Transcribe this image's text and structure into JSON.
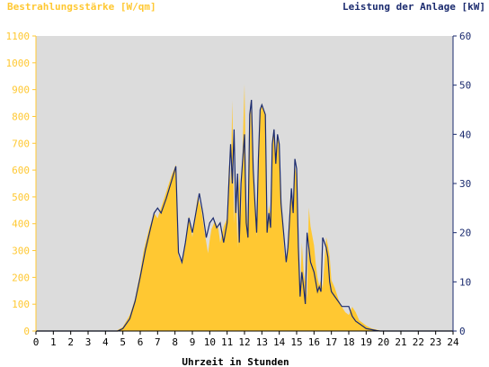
{
  "chart_data": {
    "type": "area",
    "left_axis_title": "Bestrahlungsstärke [W/qm]",
    "right_axis_title": "Leistung der Anlage [kW]",
    "xlabel": "Uhrzeit in Stunden",
    "x_ticks": [
      "0",
      "1",
      "2",
      "3",
      "4",
      "5",
      "6",
      "7",
      "8",
      "9",
      "10",
      "11",
      "12",
      "13",
      "14",
      "15",
      "16",
      "17",
      "18",
      "19",
      "20",
      "21",
      "22",
      "23",
      "24"
    ],
    "left_ticks": [
      "0",
      "100",
      "200",
      "300",
      "400",
      "500",
      "600",
      "700",
      "800",
      "900",
      "1000",
      "1100"
    ],
    "right_ticks": [
      "0",
      "10",
      "20",
      "30",
      "40",
      "50",
      "60"
    ],
    "xlim": [
      0,
      24
    ],
    "left_ylim": [
      0,
      1100
    ],
    "right_ylim": [
      0,
      60
    ],
    "grid": false,
    "colors": {
      "plot_background": "#dcdcdc",
      "irradiance_fill": "#ffc832",
      "power_line": "#1a2a6e",
      "left_axis_text": "#ffc832",
      "right_axis_text": "#1a2a6e"
    },
    "series": [
      {
        "name": "Bestrahlungsstärke [W/qm]",
        "style": "area",
        "axis": "left",
        "x": [
          0,
          4.6,
          5.0,
          5.4,
          5.7,
          6.0,
          6.2,
          6.5,
          6.8,
          7.0,
          7.2,
          7.5,
          7.8,
          8.05,
          8.2,
          8.4,
          8.6,
          8.8,
          9.0,
          9.1,
          9.3,
          9.5,
          9.7,
          9.9,
          10.0,
          10.1,
          10.3,
          10.5,
          10.6,
          10.8,
          11.0,
          11.1,
          11.2,
          11.3,
          11.4,
          11.5,
          11.6,
          11.7,
          11.8,
          11.9,
          12.0,
          12.1,
          12.2,
          12.35,
          12.4,
          12.5,
          12.6,
          12.7,
          12.8,
          12.9,
          13.0,
          13.1,
          13.2,
          13.3,
          13.4,
          13.5,
          13.6,
          13.7,
          13.8,
          13.9,
          14.0,
          14.1,
          14.2,
          14.3,
          14.4,
          14.5,
          14.6,
          14.7,
          14.8,
          14.9,
          15.0,
          15.1,
          15.2,
          15.3,
          15.4,
          15.5,
          15.6,
          15.7,
          15.8,
          16.0,
          16.1,
          16.2,
          16.3,
          16.4,
          16.5,
          16.7,
          16.8,
          16.9,
          17.0,
          17.2,
          17.4,
          17.6,
          17.8,
          18.0,
          18.2,
          18.4,
          18.6,
          18.8,
          19.0,
          19.3,
          19.6,
          19.8,
          20.0,
          20.2,
          24
        ],
        "y": [
          0,
          0,
          15,
          60,
          120,
          220,
          300,
          380,
          440,
          420,
          460,
          520,
          580,
          620,
          280,
          250,
          320,
          430,
          350,
          400,
          500,
          460,
          370,
          290,
          340,
          380,
          410,
          380,
          330,
          390,
          420,
          620,
          540,
          860,
          400,
          560,
          310,
          600,
          430,
          700,
          920,
          490,
          360,
          860,
          770,
          570,
          480,
          350,
          610,
          800,
          850,
          820,
          800,
          360,
          470,
          430,
          720,
          750,
          650,
          720,
          700,
          520,
          380,
          290,
          250,
          320,
          470,
          510,
          450,
          620,
          570,
          300,
          130,
          330,
          220,
          180,
          120,
          460,
          390,
          320,
          250,
          200,
          170,
          190,
          160,
          350,
          320,
          280,
          190,
          160,
          120,
          90,
          70,
          60,
          90,
          70,
          40,
          30,
          20,
          10,
          5,
          2,
          0,
          0,
          0
        ],
        "values": [
          0,
          0,
          15,
          60,
          120,
          220,
          300,
          380,
          440,
          420,
          460,
          520,
          580,
          620,
          280,
          250,
          320,
          430,
          350,
          400,
          500,
          460,
          370,
          290,
          340,
          380,
          410,
          380,
          330,
          390,
          420,
          620,
          540,
          860,
          400,
          560,
          310,
          600,
          430,
          700,
          920,
          490,
          360,
          860,
          770,
          570,
          480,
          350,
          610,
          800,
          850,
          820,
          800,
          360,
          470,
          430,
          720,
          750,
          650,
          720,
          700,
          520,
          380,
          290,
          250,
          320,
          470,
          510,
          450,
          620,
          570,
          300,
          130,
          330,
          220,
          180,
          120,
          460,
          390,
          320,
          250,
          200,
          170,
          190,
          160,
          350,
          320,
          280,
          190,
          160,
          120,
          90,
          70,
          60,
          90,
          70,
          40,
          30,
          20,
          10,
          5,
          2,
          0,
          0,
          0
        ]
      },
      {
        "name": "Leistung der Anlage [kW]",
        "style": "line",
        "axis": "right",
        "x": [
          0,
          4.7,
          5.0,
          5.4,
          5.7,
          6.0,
          6.3,
          6.6,
          6.8,
          7.0,
          7.2,
          7.5,
          7.8,
          8.05,
          8.2,
          8.4,
          8.6,
          8.8,
          9.0,
          9.2,
          9.4,
          9.6,
          9.8,
          10.0,
          10.2,
          10.4,
          10.6,
          10.8,
          11.0,
          11.2,
          11.3,
          11.4,
          11.5,
          11.6,
          11.7,
          11.8,
          12.0,
          12.1,
          12.2,
          12.3,
          12.4,
          12.5,
          12.6,
          12.7,
          12.8,
          12.9,
          13.0,
          13.2,
          13.3,
          13.4,
          13.5,
          13.6,
          13.7,
          13.8,
          13.9,
          14.0,
          14.1,
          14.2,
          14.3,
          14.4,
          14.5,
          14.6,
          14.7,
          14.8,
          14.9,
          15.0,
          15.1,
          15.2,
          15.3,
          15.4,
          15.5,
          15.6,
          15.7,
          15.8,
          16.0,
          16.1,
          16.2,
          16.3,
          16.4,
          16.5,
          16.7,
          16.8,
          16.9,
          17.0,
          17.2,
          17.4,
          17.6,
          17.8,
          18.0,
          18.2,
          18.4,
          18.6,
          18.8,
          19.0,
          19.3,
          19.6,
          19.8,
          20.0,
          20.2,
          24
        ],
        "y": [
          0,
          0,
          0.5,
          2.5,
          6,
          11,
          16.5,
          21,
          24,
          25,
          24,
          27,
          30.5,
          33.5,
          16,
          14,
          18,
          23,
          20,
          24,
          28,
          24,
          19,
          22,
          23,
          21,
          22,
          18,
          22,
          38,
          30,
          41,
          24,
          32,
          18,
          30,
          40,
          22,
          19,
          44,
          47,
          33,
          26,
          20,
          35,
          45,
          46,
          44,
          20,
          24,
          21,
          38,
          41,
          34,
          40,
          38,
          26,
          22,
          18,
          14,
          17,
          23,
          29,
          24,
          35,
          33,
          17,
          7,
          12,
          9,
          5.5,
          20,
          17,
          14,
          12,
          10,
          8,
          9,
          8,
          19,
          17,
          15,
          10,
          8,
          7,
          6,
          5,
          5,
          5,
          3,
          2,
          1.5,
          1,
          0.5,
          0.3,
          0.1,
          0,
          0,
          0,
          0
        ],
        "values": [
          0,
          0,
          0.5,
          2.5,
          6,
          11,
          16.5,
          21,
          24,
          25,
          24,
          27,
          30.5,
          33.5,
          16,
          14,
          18,
          23,
          20,
          24,
          28,
          24,
          19,
          22,
          23,
          21,
          22,
          18,
          22,
          38,
          30,
          41,
          24,
          32,
          18,
          30,
          40,
          22,
          19,
          44,
          47,
          33,
          26,
          20,
          35,
          45,
          46,
          44,
          20,
          24,
          21,
          38,
          41,
          34,
          40,
          38,
          26,
          22,
          18,
          14,
          17,
          23,
          29,
          24,
          35,
          33,
          17,
          7,
          12,
          9,
          5.5,
          20,
          17,
          14,
          12,
          10,
          8,
          9,
          8,
          19,
          17,
          15,
          10,
          8,
          7,
          6,
          5,
          5,
          5,
          3,
          2,
          1.5,
          1,
          0.5,
          0.3,
          0.1,
          0,
          0,
          0,
          0
        ]
      }
    ]
  }
}
